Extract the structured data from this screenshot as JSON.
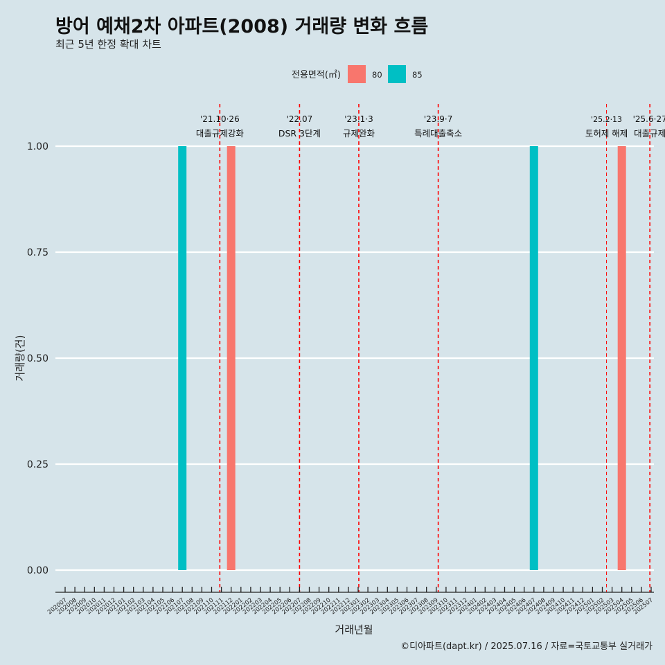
{
  "header": {
    "title": "방어 예채2차 아파트(2008) 거래량 변화 흐름",
    "subtitle": "최근 5년 한정 확대 차트"
  },
  "footer": {
    "caption": "©디아파트(dapt.kr) / 2025.07.16 / 자료=국토교통부 실거래가"
  },
  "legend": {
    "title": "전용면적(㎡)",
    "entries": [
      {
        "label": "80",
        "color": "#f8766d"
      },
      {
        "label": "85",
        "color": "#00bfc4"
      }
    ]
  },
  "chart_data": {
    "type": "bar",
    "title": "방어 예채2차 아파트(2008) 거래량 변화 흐름",
    "subtitle": "최근 5년 한정 확대 차트",
    "xlabel": "거래년월",
    "ylabel": "거래량(건)",
    "ylim": [
      0,
      1
    ],
    "y_ticks": [
      0.0,
      0.25,
      0.5,
      0.75,
      1.0
    ],
    "y_tick_labels": [
      "0.00",
      "0.25",
      "0.50",
      "0.75",
      "1.00"
    ],
    "grid": "horizontal",
    "legend_position": "top",
    "categories": [
      "202007",
      "202008",
      "202009",
      "202010",
      "202011",
      "202012",
      "202101",
      "202102",
      "202103",
      "202104",
      "202105",
      "202106",
      "202107",
      "202108",
      "202109",
      "202110",
      "202111",
      "202112",
      "202201",
      "202202",
      "202203",
      "202204",
      "202205",
      "202206",
      "202207",
      "202208",
      "202209",
      "202210",
      "202211",
      "202212",
      "202301",
      "202302",
      "202303",
      "202304",
      "202305",
      "202306",
      "202307",
      "202308",
      "202309",
      "202310",
      "202311",
      "202312",
      "202401",
      "202402",
      "202403",
      "202404",
      "202405",
      "202406",
      "202407",
      "202408",
      "202409",
      "202410",
      "202411",
      "202412",
      "202501",
      "202502",
      "202503",
      "202504",
      "202505",
      "202506",
      "202507"
    ],
    "series": [
      {
        "name": "80",
        "color": "#f8766d",
        "points": [
          {
            "x": "202112",
            "y": 1
          },
          {
            "x": "202504",
            "y": 1
          }
        ]
      },
      {
        "name": "85",
        "color": "#00bfc4",
        "points": [
          {
            "x": "202107",
            "y": 1
          },
          {
            "x": "202407",
            "y": 1
          }
        ]
      }
    ],
    "annotations": [
      {
        "month": "202110",
        "day_fraction": 0.84,
        "date": "'21.10·26",
        "label": "대출규제강화",
        "style": "dashed"
      },
      {
        "month": "202207",
        "day_fraction": 0.0,
        "date": "'22.07",
        "label": "DSR 3단계",
        "style": "dashed"
      },
      {
        "month": "202301",
        "day_fraction": 0.07,
        "date": "'23.1·3",
        "label": "규제완화",
        "style": "dashed"
      },
      {
        "month": "202309",
        "day_fraction": 0.2,
        "date": "'23.9·7",
        "label": "특례대출축소",
        "style": "dashed"
      },
      {
        "month": "202502",
        "day_fraction": 0.43,
        "date": "'25.2·13",
        "label": "토허제 해제",
        "style": "thin-dashed"
      },
      {
        "month": "202506",
        "day_fraction": 0.87,
        "date": "'25.6·27",
        "label": "대출규제",
        "style": "dashed"
      }
    ],
    "colors": {
      "background": "#d6e4ea",
      "grid": "#ffffff",
      "vline": "#ff0000"
    }
  }
}
